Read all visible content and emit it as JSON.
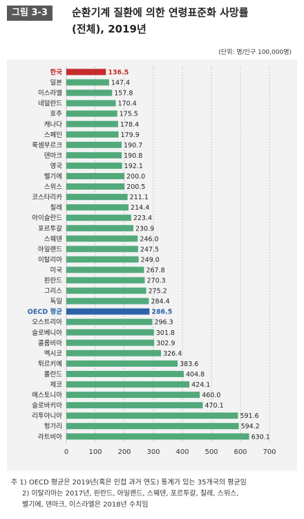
{
  "header": {
    "figure_label": "그림 3-3",
    "title_line1": "순환기계 질환에 의한 연령표준화 사망률",
    "title_line2": "(전체), 2019년",
    "unit": "(단위: 명/인구 100,000명)"
  },
  "colors": {
    "default_bar": "#52aa7b",
    "korea_bar": "#c62b2b",
    "oecd_bar": "#2d62a8",
    "panel_bg": "#f3f3f3",
    "grid": "#b5b5b5"
  },
  "chart_data": {
    "type": "bar",
    "orientation": "horizontal",
    "categories": [
      "한국",
      "일본",
      "이스라엘",
      "네덜란드",
      "호주",
      "캐나다",
      "스페인",
      "룩셈부르크",
      "덴마크",
      "영국",
      "벨기에",
      "스위스",
      "코스타리카",
      "칠레",
      "아이슬란드",
      "포르투갈",
      "스웨덴",
      "아일랜드",
      "이탈리아",
      "미국",
      "핀란드",
      "그리스",
      "독일",
      "OECD 평균",
      "오스트리아",
      "슬로베니아",
      "콜롬비아",
      "멕시코",
      "튀르키예",
      "폴란드",
      "체코",
      "에스토니아",
      "슬로바키아",
      "리투아니아",
      "헝가리",
      "라트비아"
    ],
    "values": [
      136.5,
      147.4,
      157.8,
      170.4,
      175.5,
      178.4,
      179.9,
      190.7,
      190.8,
      192.1,
      200.0,
      200.5,
      211.1,
      214.4,
      223.4,
      230.9,
      246.0,
      247.5,
      249.0,
      267.8,
      270.3,
      275.2,
      284.4,
      286.5,
      296.3,
      301.8,
      302.9,
      326.4,
      383.6,
      404.8,
      424.1,
      460.0,
      470.1,
      591.6,
      594.2,
      630.1
    ],
    "value_labels": [
      "136.5",
      "147.4",
      "157.8",
      "170.4",
      "175.5",
      "178.4",
      "179.9",
      "190.7",
      "190.8",
      "192.1",
      "200.0",
      "200.5",
      "211.1",
      "214.4",
      "223.4",
      "230.9",
      "246.0",
      "247.5",
      "249.0",
      "267.8",
      "270.3",
      "275.2",
      "284.4",
      "286.5",
      "296.3",
      "301.8",
      "302.9",
      "326.4",
      "383.6",
      "404.8",
      "424.1",
      "460.0",
      "470.1",
      "591.6",
      "594.2",
      "630.1"
    ],
    "highlight": {
      "한국": "korea",
      "OECD 평균": "oecd"
    },
    "xlim": [
      0,
      700
    ],
    "xticks": [
      "0",
      "100",
      "200",
      "300",
      "400",
      "500",
      "600",
      "700"
    ],
    "grid": "vertical dashed",
    "title": "순환기계 질환에 의한 연령표준화 사망률 (전체), 2019년",
    "xlabel": "",
    "ylabel": ""
  },
  "notes": {
    "line1": "주 1) OECD 평균은 2019년(혹은 인접 과거 연도) 통계가 있는 35개국의 평균임",
    "line2": "2) 이탈리아는 2017년, 핀란드, 아일랜드, 스웨덴, 포르투갈, 칠레, 스위스,",
    "line3": "벨기에, 덴마크, 이스라엘은 2018년 수치임"
  }
}
